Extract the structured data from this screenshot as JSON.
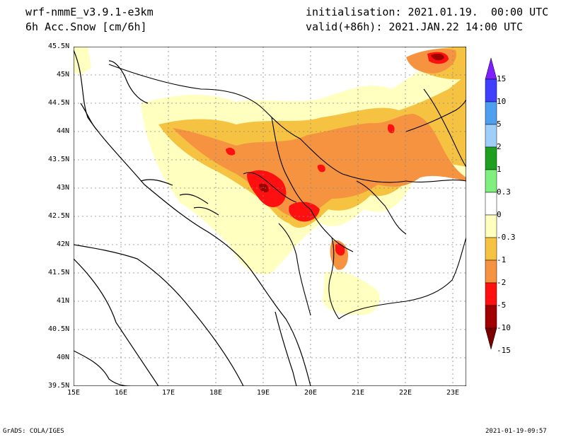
{
  "header": {
    "model": "wrf-nmmE_v3.9.1-e3km",
    "variable": "6h Acc.Snow [cm/6h]",
    "init": "initialisation: 2021.01.19.  00:00 UTC",
    "valid": "valid(+86h): 2021.JAN.22 14:00 UTC"
  },
  "map": {
    "lat_labels": [
      "45.5N",
      "45N",
      "44.5N",
      "44N",
      "43.5N",
      "43N",
      "42.5N",
      "42N",
      "41.5N",
      "41N",
      "40.5N",
      "40N",
      "39.5N"
    ],
    "lon_labels": [
      "15E",
      "16E",
      "17E",
      "18E",
      "19E",
      "20E",
      "21E",
      "22E",
      "23E"
    ],
    "extent": {
      "lon_min": 15,
      "lon_max": 23.3,
      "lat_min": 39.5,
      "lat_max": 45.5
    }
  },
  "colorbar": {
    "labels": [
      "15",
      "10",
      "5",
      "2",
      "1",
      "0.3",
      "0",
      "-0.3",
      "-1",
      "-2",
      "-5",
      "-10",
      "-15"
    ],
    "colors": [
      "#7f1fff",
      "#3f3fff",
      "#4f9ff0",
      "#9fcff8",
      "#1f9f1f",
      "#7fef7f",
      "#ffffff",
      "#ffffc0",
      "#f5c242",
      "#f59340",
      "#ff1010",
      "#a00000",
      "#7a0000"
    ]
  },
  "footer": {
    "left": "GrADS: COLA/IGES",
    "right": "2021-01-19-09:57"
  }
}
